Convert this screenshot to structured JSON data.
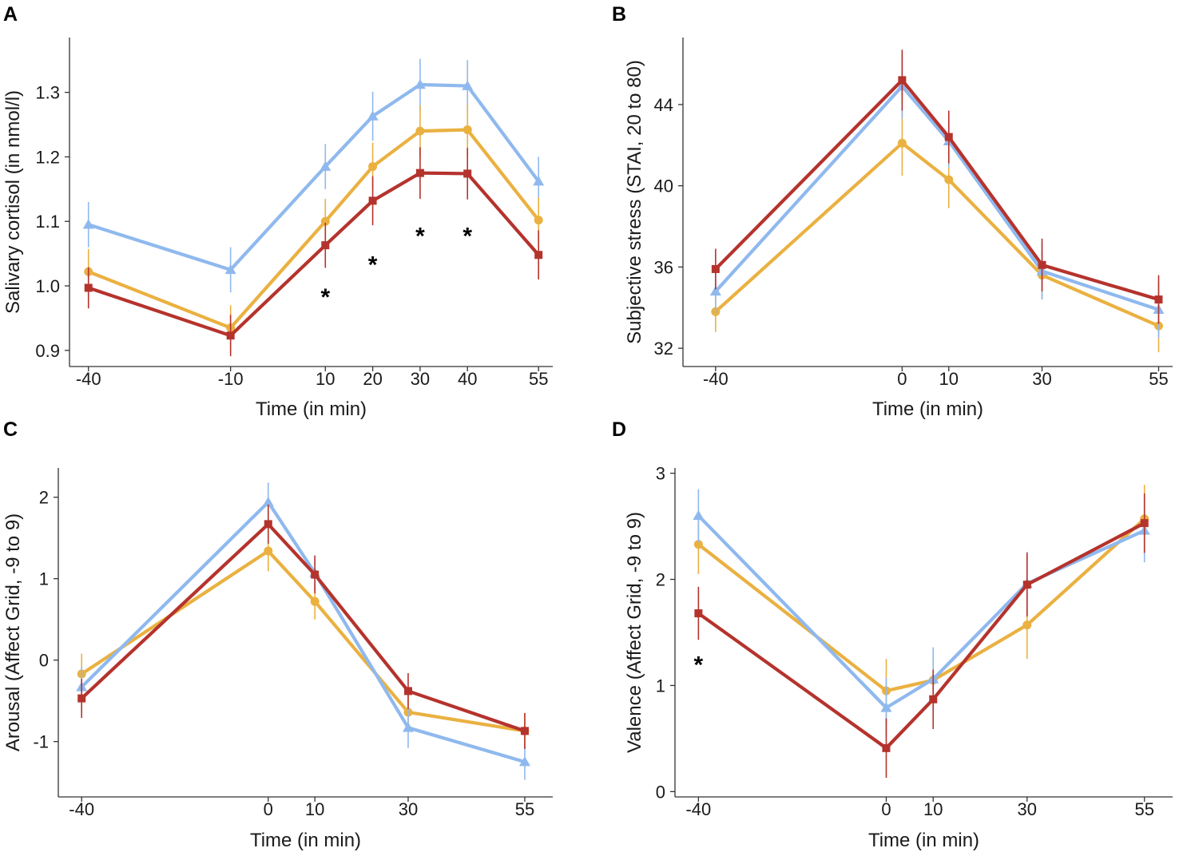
{
  "series_colors": {
    "red": "#b5332d",
    "yellow": "#eab141",
    "blue": "#8fb9ee"
  },
  "chart_data": [
    {
      "panel": "A",
      "type": "line",
      "xlabel": "Time (in min)",
      "ylabel": "Salivary cortisol (in nmol/l)",
      "x": [
        -40,
        -10,
        10,
        20,
        30,
        40,
        55
      ],
      "x_tick_labels": [
        "-40",
        "-10",
        "10",
        "20",
        "30",
        "40",
        "55"
      ],
      "y_ticks": [
        0.9,
        1.0,
        1.1,
        1.2,
        1.3
      ],
      "y_tick_labels": [
        "0.9",
        "1.0",
        "1.1",
        "1.2",
        "1.3"
      ],
      "xlim": [
        -44,
        58
      ],
      "ylim": [
        0.875,
        1.385
      ],
      "significance": [
        {
          "x": 10,
          "y": 0.995,
          "label": "*"
        },
        {
          "x": 20,
          "y": 1.045,
          "label": "*"
        },
        {
          "x": 30,
          "y": 1.09,
          "label": "*"
        },
        {
          "x": 40,
          "y": 1.09,
          "label": "*"
        }
      ],
      "series": [
        {
          "name": "blue",
          "color": "#8fb9ee",
          "marker": "triangle",
          "values": [
            1.095,
            1.025,
            1.185,
            1.263,
            1.312,
            1.31,
            1.162
          ],
          "err": [
            0.035,
            0.035,
            0.035,
            0.038,
            0.04,
            0.04,
            0.038
          ]
        },
        {
          "name": "yellow",
          "color": "#eab141",
          "marker": "circle",
          "values": [
            1.022,
            0.935,
            1.1,
            1.185,
            1.24,
            1.242,
            1.102
          ],
          "err": [
            0.035,
            0.035,
            0.035,
            0.037,
            0.04,
            0.04,
            0.035
          ]
        },
        {
          "name": "red",
          "color": "#b5332d",
          "marker": "square",
          "values": [
            0.997,
            0.923,
            1.063,
            1.132,
            1.175,
            1.174,
            1.048
          ],
          "err": [
            0.032,
            0.032,
            0.035,
            0.038,
            0.04,
            0.04,
            0.038
          ]
        }
      ]
    },
    {
      "panel": "B",
      "type": "line",
      "xlabel": "Time (in min)",
      "ylabel": "Subjective stress (STAI, 20 to 80)",
      "x": [
        -40,
        0,
        10,
        30,
        55
      ],
      "x_tick_labels": [
        "-40",
        "0",
        "10",
        "30",
        "55"
      ],
      "y_ticks": [
        32,
        36,
        40,
        44
      ],
      "y_tick_labels": [
        "32",
        "36",
        "40",
        "44"
      ],
      "xlim": [
        -47,
        58
      ],
      "ylim": [
        31.1,
        47.3
      ],
      "significance": [],
      "series": [
        {
          "name": "yellow",
          "color": "#eab141",
          "marker": "circle",
          "values": [
            33.8,
            42.1,
            40.3,
            35.6,
            33.1
          ],
          "err": [
            1.0,
            1.6,
            1.4,
            1.2,
            1.3
          ]
        },
        {
          "name": "blue",
          "color": "#8fb9ee",
          "marker": "triangle",
          "values": [
            34.8,
            44.9,
            42.2,
            35.8,
            33.9
          ],
          "err": [
            1.1,
            1.6,
            1.3,
            1.4,
            1.4
          ]
        },
        {
          "name": "red",
          "color": "#b5332d",
          "marker": "square",
          "values": [
            35.9,
            45.2,
            42.4,
            36.1,
            34.4
          ],
          "err": [
            1.0,
            1.5,
            1.3,
            1.3,
            1.2
          ]
        }
      ]
    },
    {
      "panel": "C",
      "type": "line",
      "xlabel": "Time (in min)",
      "ylabel": "Arousal (Affect Grid, -9 to 9)",
      "x": [
        -40,
        0,
        10,
        30,
        55
      ],
      "x_tick_labels": [
        "-40",
        "0",
        "10",
        "30",
        "55"
      ],
      "y_ticks": [
        -1,
        0,
        1,
        2
      ],
      "y_tick_labels": [
        "-1",
        "0",
        "1",
        "2"
      ],
      "xlim": [
        -45,
        61
      ],
      "ylim": [
        -1.68,
        2.36
      ],
      "significance": [],
      "series": [
        {
          "name": "yellow",
          "color": "#eab141",
          "marker": "circle",
          "values": [
            -0.17,
            1.34,
            0.72,
            -0.64,
            -0.87
          ],
          "err": [
            0.25,
            0.25,
            0.22,
            0.22,
            0.22
          ]
        },
        {
          "name": "blue",
          "color": "#8fb9ee",
          "marker": "triangle",
          "values": [
            -0.33,
            1.94,
            1.07,
            -0.83,
            -1.25
          ],
          "err": [
            0.25,
            0.24,
            0.22,
            0.25,
            0.22
          ]
        },
        {
          "name": "red",
          "color": "#b5332d",
          "marker": "square",
          "values": [
            -0.47,
            1.67,
            1.05,
            -0.38,
            -0.87
          ],
          "err": [
            0.24,
            0.24,
            0.23,
            0.22,
            0.22
          ]
        }
      ]
    },
    {
      "panel": "D",
      "type": "line",
      "xlabel": "Time (in min)",
      "ylabel": "Valence (Affect Grid, -9 to 9)",
      "x": [
        -40,
        0,
        10,
        30,
        55
      ],
      "x_tick_labels": [
        "-40",
        "0",
        "10",
        "30",
        "55"
      ],
      "y_ticks": [
        0,
        1,
        2,
        3
      ],
      "y_tick_labels": [
        "0",
        "1",
        "2",
        "3"
      ],
      "xlim": [
        -45,
        61
      ],
      "ylim": [
        -0.05,
        3.05
      ],
      "significance": [
        {
          "x": -40,
          "y": 1.27,
          "label": "*"
        }
      ],
      "series": [
        {
          "name": "yellow",
          "color": "#eab141",
          "marker": "circle",
          "values": [
            2.33,
            0.95,
            1.05,
            1.57,
            2.57
          ],
          "err": [
            0.28,
            0.3,
            0.28,
            0.32,
            0.32
          ]
        },
        {
          "name": "blue",
          "color": "#8fb9ee",
          "marker": "triangle",
          "values": [
            2.6,
            0.79,
            1.06,
            1.96,
            2.46
          ],
          "err": [
            0.25,
            0.28,
            0.3,
            0.3,
            0.3
          ]
        },
        {
          "name": "red",
          "color": "#b5332d",
          "marker": "square",
          "values": [
            1.68,
            0.41,
            0.87,
            1.95,
            2.53
          ],
          "err": [
            0.25,
            0.28,
            0.28,
            0.3,
            0.28
          ]
        }
      ]
    }
  ]
}
